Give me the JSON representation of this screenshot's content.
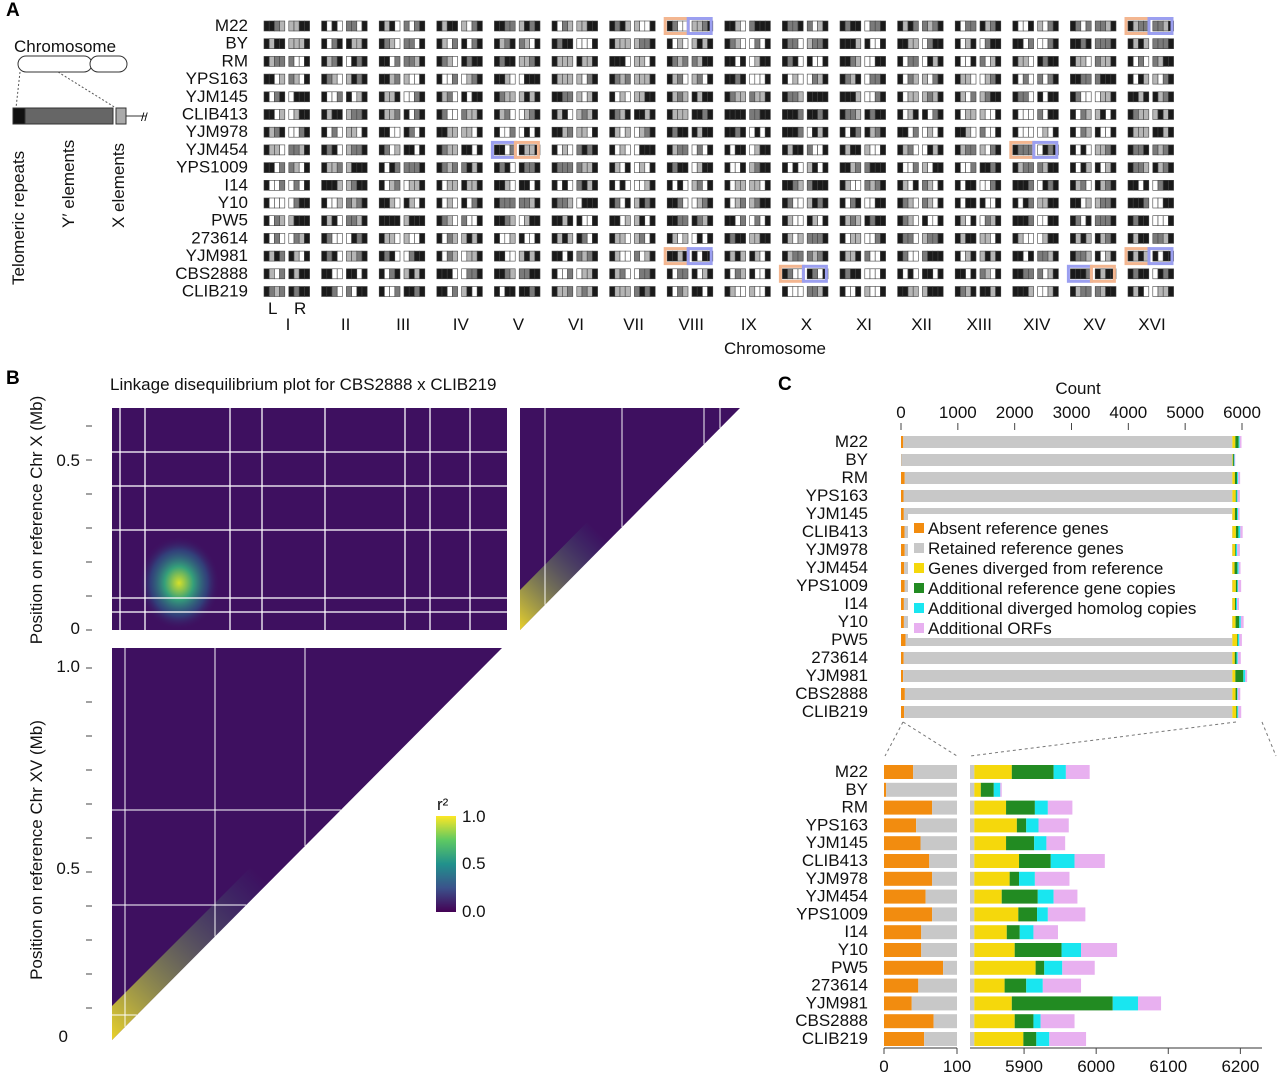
{
  "panel_labels": [
    "A",
    "B",
    "C"
  ],
  "panel_a": {
    "strains": [
      "M22",
      "BY",
      "RM",
      "YPS163",
      "YJM145",
      "CLIB413",
      "YJM978",
      "YJM454",
      "YPS1009",
      "I14",
      "Y10",
      "PW5",
      "273614",
      "YJM981",
      "CBS2888",
      "CLIB219"
    ],
    "chromosomes": [
      "I",
      "II",
      "III",
      "IV",
      "V",
      "VI",
      "VII",
      "VIII",
      "IX",
      "X",
      "XI",
      "XII",
      "XIII",
      "XIV",
      "XV",
      "XVI"
    ],
    "arm_labels": [
      "L",
      "R"
    ],
    "xlabel": "Chromosome",
    "schematic": {
      "title": "Chromosome",
      "labels": [
        "Telomeric repeats",
        "Y′ elements",
        "X elements"
      ]
    },
    "highlights": [
      {
        "strain": "M22",
        "chromosome": "VIII"
      },
      {
        "strain": "M22",
        "chromosome": "XVI"
      },
      {
        "strain": "YJM454",
        "chromosome": "V"
      },
      {
        "strain": "YJM454",
        "chromosome": "XIV"
      },
      {
        "strain": "YJM981",
        "chromosome": "VIII"
      },
      {
        "strain": "YJM981",
        "chromosome": "XVI"
      },
      {
        "strain": "CBS2888",
        "chromosome": "X"
      },
      {
        "strain": "CBS2888",
        "chromosome": "XV"
      }
    ],
    "colors": {
      "highlight_a": "#f3b690",
      "highlight_b": "#9b9ff0",
      "dark": "#1a1a1a",
      "mid": "#7a7a7a",
      "light": "#b5b5b5"
    }
  },
  "panel_b": {
    "title": "Linkage disequilibrium plot for CBS2888 x CLIB219",
    "ylabel_top": "Position on reference Chr X (Mb)",
    "ylabel_bottom": "Position on reference Chr XV (Mb)",
    "top_ticks": [
      "0.5",
      "0"
    ],
    "bottom_ticks": [
      "1.0",
      "0.5",
      "0"
    ],
    "legend": {
      "title": "r²",
      "ticks": [
        "1.0",
        "0.5",
        "0.0"
      ]
    },
    "colors": {
      "low": "#440a58",
      "bg": "#3e1060",
      "high": "#f5e62b",
      "mid": "#2a8c8b"
    }
  },
  "chart_data": {
    "type": "bar",
    "title": "",
    "xlabel": "Count",
    "ylabel": "",
    "xlim": [
      0,
      6000
    ],
    "xticks": [
      "0",
      "1000",
      "2000",
      "3000",
      "4000",
      "5000",
      "6000"
    ],
    "zoom_ticks_left": [
      "0",
      "100"
    ],
    "zoom_ticks_right": [
      "5900",
      "6000",
      "6100",
      "6200"
    ],
    "categories": [
      "M22",
      "BY",
      "RM",
      "YPS163",
      "YJM145",
      "CLIB413",
      "YJM978",
      "YJM454",
      "YPS1009",
      "I14",
      "Y10",
      "PW5",
      "273614",
      "YJM981",
      "CBS2888",
      "CLIB219"
    ],
    "series": [
      {
        "name": "Absent reference genes",
        "color": "#f28c0f",
        "values": [
          40,
          3,
          66,
          44,
          50,
          62,
          66,
          57,
          66,
          51,
          51,
          81,
          47,
          38,
          68,
          55
        ]
      },
      {
        "name": "Retained reference genes",
        "color": "#c8c8c8",
        "values": [
          5791,
          5828,
          5765,
          5787,
          5781,
          5769,
          5765,
          5774,
          5765,
          5780,
          5780,
          5750,
          5784,
          5793,
          5763,
          5776
        ]
      },
      {
        "name": "Genes diverged from reference",
        "color": "#f5d80c",
        "values": [
          52,
          9,
          44,
          59,
          44,
          62,
          49,
          38,
          61,
          45,
          56,
          85,
          42,
          52,
          56,
          68
        ]
      },
      {
        "name": "Additional reference gene copies",
        "color": "#228b22",
        "values": [
          58,
          18,
          40,
          13,
          39,
          44,
          13,
          50,
          26,
          18,
          65,
          12,
          30,
          140,
          26,
          18
        ]
      },
      {
        "name": "Additional diverged homolog copies",
        "color": "#19e6f0",
        "values": [
          17,
          9,
          18,
          17,
          17,
          33,
          22,
          22,
          15,
          19,
          27,
          25,
          23,
          35,
          10,
          18
        ]
      },
      {
        "name": "Additional ORFs",
        "color": "#e8b0f0",
        "values": [
          33,
          2,
          34,
          42,
          26,
          42,
          48,
          33,
          52,
          34,
          50,
          45,
          53,
          32,
          47,
          51
        ]
      }
    ]
  }
}
